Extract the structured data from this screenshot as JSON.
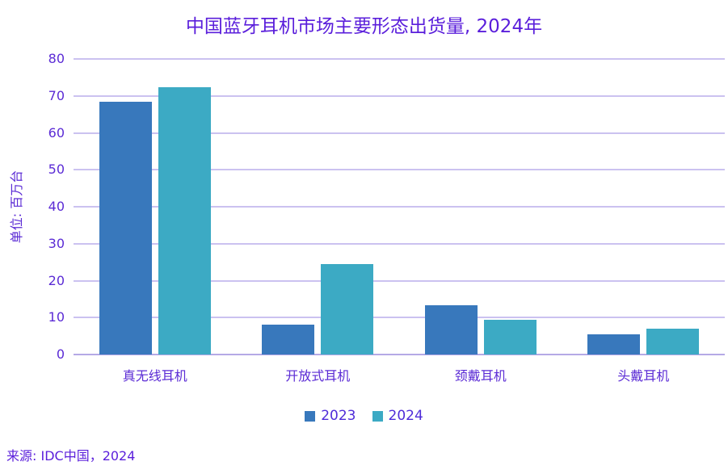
{
  "title": "中国蓝牙耳机市场主要形态出货量, 2024年",
  "source": "来源: IDC中国，2024",
  "colors": {
    "title_text": "#5a1edb",
    "axis_text": "#5b2bd5",
    "legend_text": "#4f2cd9",
    "gridline": "#cbc2f0",
    "zero_line": "#b5a9e6",
    "series_2023": "#3878bc",
    "series_2024": "#3caac4"
  },
  "chart_data": {
    "type": "bar",
    "title": "中国蓝牙耳机市场主要形态出货量, 2024年",
    "xlabel": "",
    "ylabel": "单位: 百万台",
    "categories": [
      "真无线耳机",
      "开放式耳机",
      "颈戴耳机",
      "头戴耳机"
    ],
    "series": [
      {
        "name": "2023",
        "color": "#3878bc",
        "values": [
          68.4,
          8.0,
          13.3,
          5.5
        ]
      },
      {
        "name": "2024",
        "color": "#3caac4",
        "values": [
          72.3,
          24.5,
          9.4,
          7.0
        ]
      }
    ],
    "ylim": [
      0,
      80
    ],
    "yticks": [
      0,
      10,
      20,
      30,
      40,
      50,
      60,
      70,
      80
    ],
    "grid": "horizontal",
    "legend_position": "bottom",
    "source": "来源: IDC中国，2024"
  }
}
